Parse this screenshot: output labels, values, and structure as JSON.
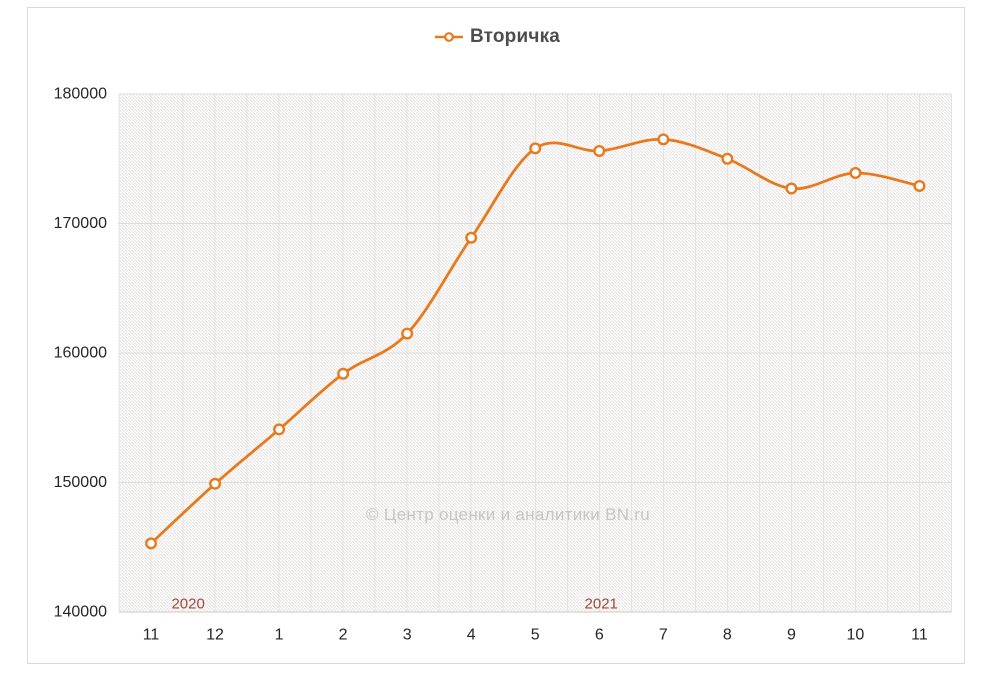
{
  "legend": {
    "label": "Вторичка"
  },
  "watermark": {
    "text": "© Центр оценки и аналитики BN.ru"
  },
  "chart_data": {
    "type": "line",
    "title": "Вторичка",
    "categories": [
      "11",
      "12",
      "1",
      "2",
      "3",
      "4",
      "5",
      "6",
      "7",
      "8",
      "9",
      "10",
      "11"
    ],
    "series": [
      {
        "name": "Вторичка",
        "marker": "open-circle",
        "values": [
          145300,
          149900,
          154100,
          158400,
          161500,
          168900,
          175800,
          175600,
          176500,
          175000,
          172700,
          173900,
          172900
        ]
      }
    ],
    "ylim": [
      140000,
      180000
    ],
    "ytick_step": 10000,
    "ytick_labels": [
      "140000",
      "150000",
      "160000",
      "170000",
      "180000"
    ],
    "smooth": true,
    "grid": true,
    "legend_position": "top-center",
    "plot_background": "light-downward-diagonal-hatch",
    "annotations": [
      {
        "text": "2020",
        "at_index": 0.58
      },
      {
        "text": "2021",
        "at_index": 7.03
      }
    ]
  },
  "colors": {
    "background": "#ffffff",
    "series_line": "#e87a1e",
    "marker_fill": "#ffffff",
    "legend_text": "#4d4d4d",
    "axis_text": "#262626",
    "annotation_text": "#9e4b3b",
    "watermark_text": "#c8c5c2",
    "gridline": "#dbdbdb",
    "axis_line": "#c8c6c4",
    "vertical_gridline": "#e4e2e0",
    "hatch_line": "#dcd9d6",
    "frame_border": "#d9d9d9"
  }
}
